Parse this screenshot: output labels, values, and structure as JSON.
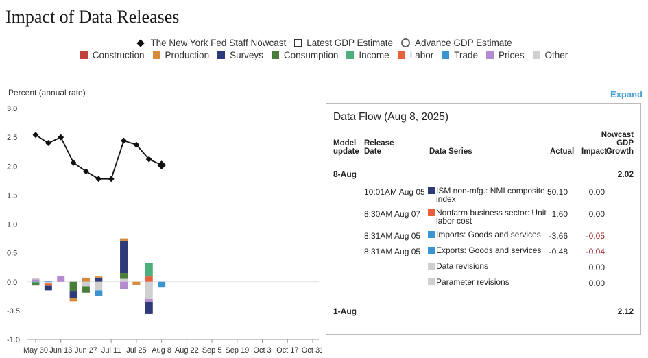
{
  "page": {
    "title": "Impact of Data Releases",
    "expand_label": "Expand"
  },
  "legend": {
    "markers": [
      {
        "label": "The New York Fed Staff Nowcast",
        "symbol": "diamond"
      },
      {
        "label": "Latest GDP Estimate",
        "symbol": "square"
      },
      {
        "label": "Advance GDP Estimate",
        "symbol": "circle"
      }
    ],
    "categories": [
      {
        "label": "Construction",
        "color": "#c0423a"
      },
      {
        "label": "Production",
        "color": "#d58a3c"
      },
      {
        "label": "Surveys",
        "color": "#2e3b78"
      },
      {
        "label": "Consumption",
        "color": "#4a7d3a"
      },
      {
        "label": "Income",
        "color": "#4caf7d"
      },
      {
        "label": "Labor",
        "color": "#e8603c"
      },
      {
        "label": "Trade",
        "color": "#3a94d1"
      },
      {
        "label": "Prices",
        "color": "#b48ad1"
      },
      {
        "label": "Other",
        "color": "#cfcfcf"
      }
    ]
  },
  "chart_data": {
    "type": "bar",
    "ylabel": "Percent (annual rate)",
    "ylim": [
      -1.0,
      3.0
    ],
    "y_ticks": [
      "3.0",
      "2.5",
      "2.0",
      "1.5",
      "1.0",
      "0.5",
      "0.0",
      "-0.5",
      "-1.0"
    ],
    "x_tick_labels": [
      "May 30",
      "Jun 13",
      "Jun 27",
      "Jul 11",
      "Jul 25",
      "Aug 8",
      "Aug 22",
      "Sep 5",
      "Sep 19",
      "Oct 3",
      "Oct 17",
      "Oct 31"
    ],
    "x_dates": [
      "May 30",
      "Jun 6",
      "Jun 13",
      "Jun 20",
      "Jun 27",
      "Jul 4",
      "Jul 11",
      "Jul 18",
      "Jul 25",
      "Aug 1",
      "Aug 8"
    ],
    "nowcast": {
      "name": "The New York Fed Staff Nowcast",
      "values": [
        2.54,
        2.4,
        2.5,
        2.06,
        1.91,
        1.78,
        1.78,
        2.44,
        2.37,
        2.12,
        2.02
      ]
    },
    "impacts": [
      {
        "date": "May 30",
        "segments": [
          {
            "category": "Prices",
            "value": 0.04
          },
          {
            "category": "Other",
            "value": 0.02
          },
          {
            "category": "Income",
            "value": -0.02
          },
          {
            "category": "Consumption",
            "value": -0.03
          },
          {
            "category": "Other",
            "value": -0.02
          }
        ]
      },
      {
        "date": "Jun 6",
        "segments": [
          {
            "category": "Trade",
            "value": 0.02
          },
          {
            "category": "Other",
            "value": -0.03
          },
          {
            "category": "Labor",
            "value": -0.04
          },
          {
            "category": "Surveys",
            "value": -0.08
          }
        ]
      },
      {
        "date": "Jun 13",
        "segments": [
          {
            "category": "Prices",
            "value": 0.1
          }
        ]
      },
      {
        "date": "Jun 20",
        "segments": [
          {
            "category": "Consumption",
            "value": -0.17
          },
          {
            "category": "Surveys",
            "value": -0.12
          },
          {
            "category": "Production",
            "value": -0.05
          }
        ]
      },
      {
        "date": "Jun 27",
        "segments": [
          {
            "category": "Production",
            "value": 0.07
          },
          {
            "category": "Other",
            "value": -0.08
          },
          {
            "category": "Consumption",
            "value": -0.11
          }
        ]
      },
      {
        "date": "Jul 4",
        "segments": [
          {
            "category": "Surveys",
            "value": 0.07
          },
          {
            "category": "Production",
            "value": 0.02
          },
          {
            "category": "Other",
            "value": -0.15
          },
          {
            "category": "Trade",
            "value": -0.1
          }
        ]
      },
      {
        "date": "Jul 18",
        "segments": [
          {
            "category": "Other",
            "value": 0.05
          },
          {
            "category": "Consumption",
            "value": 0.1
          },
          {
            "category": "Surveys",
            "value": 0.56
          },
          {
            "category": "Production",
            "value": 0.04
          },
          {
            "category": "Prices",
            "value": -0.13
          }
        ]
      },
      {
        "date": "Jul 25",
        "segments": [
          {
            "category": "Production",
            "value": -0.05
          }
        ]
      },
      {
        "date": "Aug 1",
        "segments": [
          {
            "category": "Labor",
            "value": 0.09
          },
          {
            "category": "Income",
            "value": 0.24
          },
          {
            "category": "Other",
            "value": -0.3
          },
          {
            "category": "Prices",
            "value": -0.05
          },
          {
            "category": "Surveys",
            "value": -0.21
          }
        ]
      },
      {
        "date": "Aug 8",
        "segments": [
          {
            "category": "Trade",
            "value": -0.1
          }
        ]
      }
    ]
  },
  "data_flow": {
    "title": "Data Flow (Aug 8, 2025)",
    "headers": {
      "model_update": [
        "Model",
        "update"
      ],
      "release_date": [
        "Release",
        "Date"
      ],
      "data_series": "Data Series",
      "actual": "Actual",
      "impact": "Impact",
      "nowcast": [
        "Nowcast",
        "GDP",
        "Growth"
      ]
    },
    "updates": [
      {
        "label": "8-Aug",
        "nowcast": "2.02",
        "rows": [
          {
            "release": "10:01AM Aug 05",
            "series": "ISM non-mfg.: NMI composite index",
            "color": "#2e3b78",
            "actual": "50.10",
            "impact": "0.00",
            "negative": false
          },
          {
            "release": "8:30AM Aug 07",
            "series": "Nonfarm business sector: Unit labor cost",
            "color": "#e8603c",
            "actual": "1.60",
            "impact": "0.00",
            "negative": false
          },
          {
            "release": "8:31AM Aug 05",
            "series": "Imports: Goods and services",
            "color": "#3a94d1",
            "actual": "-3.66",
            "impact": "-0.05",
            "negative": true
          },
          {
            "release": "8:31AM Aug 05",
            "series": "Exports: Goods and services",
            "color": "#3a94d1",
            "actual": "-0.48",
            "impact": "-0.04",
            "negative": true
          },
          {
            "release": "",
            "series": "Data revisions",
            "color": "#cfcfcf",
            "actual": "",
            "impact": "0.00",
            "negative": false
          },
          {
            "release": "",
            "series": "Parameter revisions",
            "color": "#cfcfcf",
            "actual": "",
            "impact": "0.00",
            "negative": false
          }
        ]
      },
      {
        "label": "1-Aug",
        "nowcast": "2.12",
        "rows": []
      }
    ]
  }
}
